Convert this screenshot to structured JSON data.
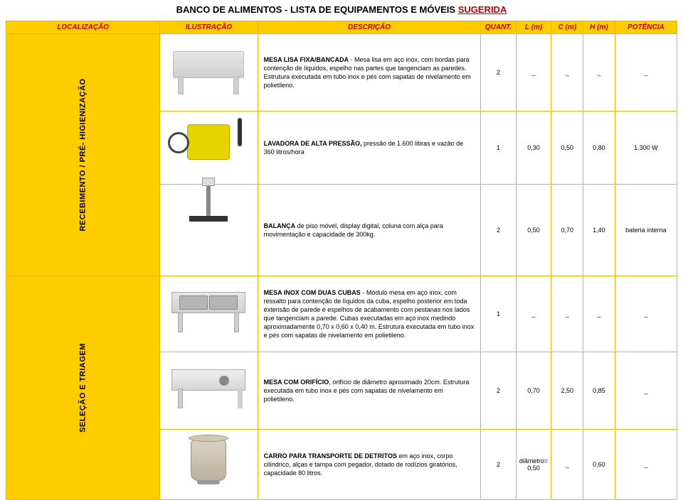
{
  "title": {
    "main": "BANCO DE ALIMENTOS - LISTA DE EQUIPAMENTOS E MÓVEIS ",
    "suffix": "SUGERIDA"
  },
  "colors": {
    "header_bg": "#ffcc00",
    "header_text": "#c00000",
    "border": "#e6b800"
  },
  "header": {
    "loc": "LOCALIZAÇÃO",
    "ill": "ILUSTRAÇÃO",
    "desc": "DESCRIÇÃO",
    "quant": "QUANT.",
    "l": "L (m)",
    "c": "C (m)",
    "h": "H (m)",
    "pot": "POTÊNCIA"
  },
  "sections": [
    {
      "label": "RECEBIMENTO / PRÉ-\nHIGIENIZAÇÃO",
      "rows": [
        {
          "lead": "MESA LISA FIXA/BANCADA",
          "body": " - Mesa lisa em aço inox, com bordas para contenção de líquidos, espelho nas partes que tangenciam as paredes. Estrutura executada em tubo inox e pés com sapatas de nivelamento em polietileno.",
          "quant": "2",
          "l": "_",
          "c": "_",
          "h": "_",
          "pot": "_"
        },
        {
          "lead": "LAVADORA DE ALTA PRESSÃO,",
          "body": " pressão de 1.600 libras e vazão de 360 litros/hora",
          "quant": "1",
          "l": "0,30",
          "c": "0,50",
          "h": "0,80",
          "pot": "1.300 W"
        },
        {
          "lead": "BALANÇA",
          "body": " de piso móvel, display digital, coluna com alça para movimentação e capacidade de 300kg.",
          "quant": "2",
          "l": "0,50",
          "c": "0,70",
          "h": "1,40",
          "pot": "bateria interna"
        }
      ]
    },
    {
      "label": "SELEÇÃO E TRIAGEM",
      "rows": [
        {
          "lead": "MESA INOX COM DUAS CUBAS",
          "body": " - Módulo mesa em aço inox, com ressalto para contenção de líquidos da cuba, espelho posterior em toda extensão de parede e espelhos de acabamento com pestanas nos lados que tangenciam a parede. Cubas executadas em aço inox medindo aproximadamente  0,70 x 0,60 x 0,40 m. Estrutura executada em tubo inox e pés com sapatas de nivelamento em polietileno.",
          "quant": "1",
          "l": "_",
          "c": "_",
          "h": "_",
          "pot": "_"
        },
        {
          "lead": "MESA COM ORIFÍCIO",
          "body": ", orifício de diâmetro aproximado 20cm. Estrutura executada em tubo inox e pés com sapatas de nivelamento em polietileno.",
          "quant": "2",
          "l": "0,70",
          "c": "2,50",
          "h": "0,85",
          "pot": "_"
        },
        {
          "lead": "CARRO PARA TRANSPORTE DE DETRITOS",
          "body": " em aço inox, corpo cilíndrico, alças e tampa com pegador, dotado de rodízios giratórios, capacidade 80 litros.",
          "quant": "2",
          "l": "diâmetro= 0,50",
          "c": "_",
          "h": "0,60",
          "pot": "_"
        }
      ]
    }
  ]
}
